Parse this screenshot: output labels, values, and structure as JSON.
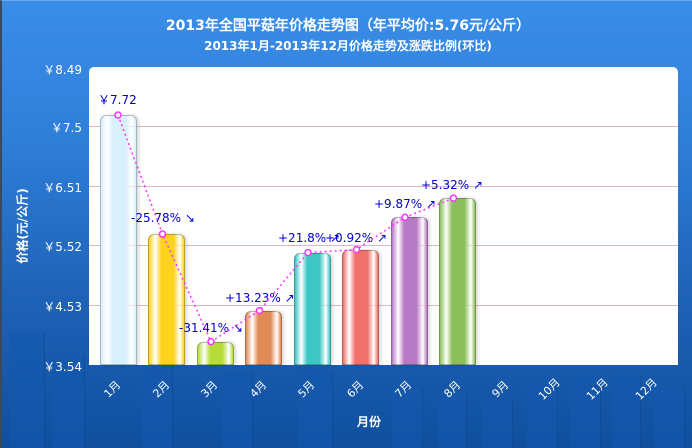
{
  "header": {
    "title": "2013年全国平菇年价格走势图（年平均价:5.76元/公斤）",
    "subtitle": "2013年1月-2013年12月价格走势及涨跌比例(环比)"
  },
  "axes": {
    "ylabel": "价格(元/公斤)",
    "xlabel": "月份",
    "yticks": [
      "￥8.49",
      "￥7.5",
      "￥6.51",
      "￥5.52",
      "￥4.53",
      "￥3.54"
    ],
    "xticks": [
      "1月",
      "2月",
      "3月",
      "4月",
      "5月",
      "6月",
      "7月",
      "8月",
      "9月",
      "10月",
      "11月",
      "12月"
    ]
  },
  "annotations": {
    "first_value": "￥7.72",
    "changes": [
      "-25.78% ↘",
      "-31.41% ↘",
      "+13.23% ↗",
      "+21.8% ↗",
      "+0.92% ↗",
      "+9.87% ↗",
      "+5.32% ↗"
    ]
  },
  "colors": {
    "background": "#2f7fd9",
    "plot_bg": "#ffffff",
    "gridline": "#d9b8c4",
    "trend_line": "#ff33ff",
    "label_text": "#0000cc",
    "bars": [
      "#d8f0fb",
      "#ffd21f",
      "#b6dc3a",
      "#e08a55",
      "#3cc7c4",
      "#f0706a",
      "#b77ac4",
      "#8cbf5c"
    ]
  },
  "chart_data": {
    "type": "bar",
    "title": "2013年全国平菇年价格走势图（年平均价:5.76元/公斤）",
    "subtitle": "2013年1月-2013年12月价格走势及涨跌比例(环比)",
    "xlabel": "月份",
    "ylabel": "价格(元/公斤)",
    "categories": [
      "1月",
      "2月",
      "3月",
      "4月",
      "5月",
      "6月",
      "7月",
      "8月",
      "9月",
      "10月",
      "11月",
      "12月"
    ],
    "values": [
      7.72,
      5.73,
      3.93,
      4.45,
      5.42,
      5.47,
      6.01,
      6.33,
      null,
      null,
      null,
      null
    ],
    "change_pct": [
      null,
      -25.78,
      -31.41,
      13.23,
      21.8,
      0.92,
      9.87,
      5.32,
      null,
      null,
      null,
      null
    ],
    "annual_average": 5.76,
    "ylim": [
      3.54,
      8.49
    ],
    "yticks": [
      3.54,
      4.53,
      5.52,
      6.51,
      7.5,
      8.49
    ],
    "grid": true,
    "overlay": "dotted line connecting bar tops with month-over-month change labels"
  }
}
